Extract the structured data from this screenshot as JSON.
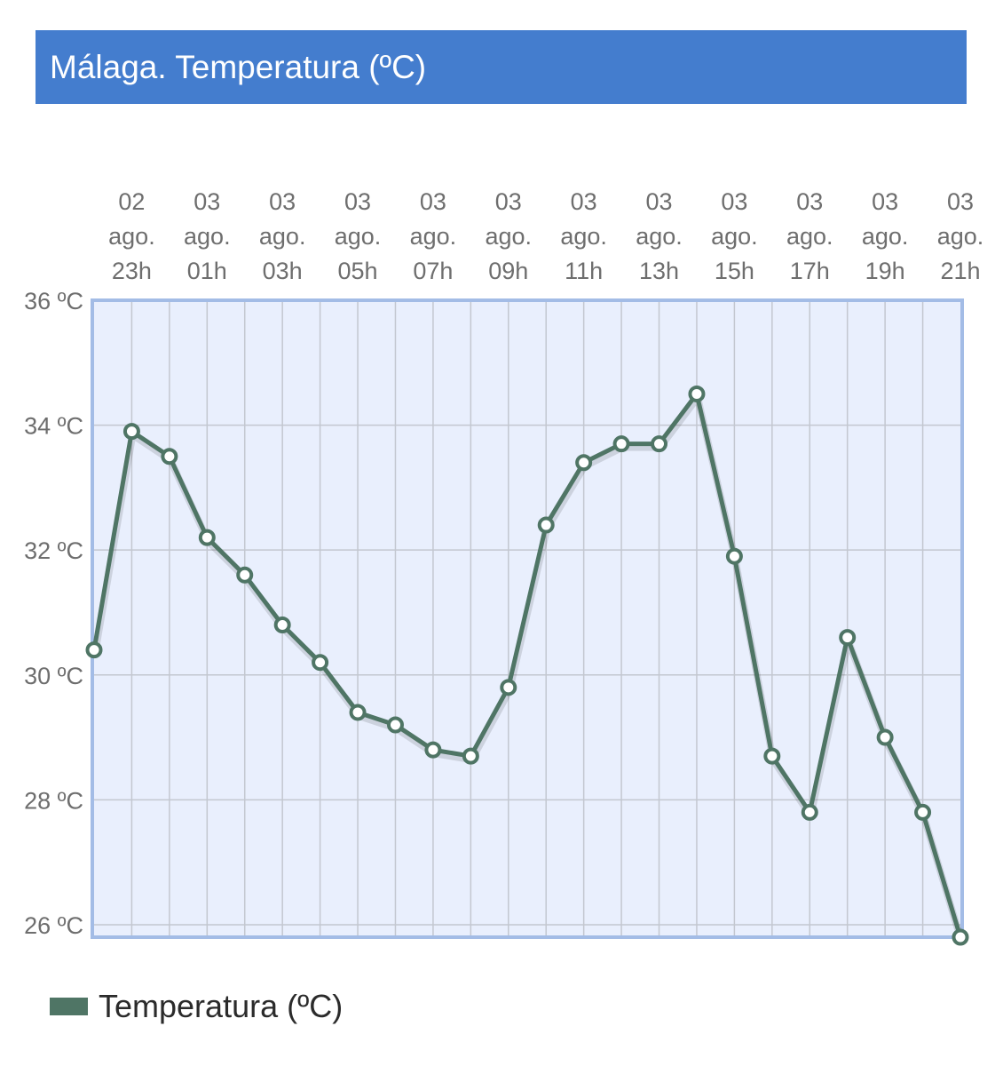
{
  "chart_data": {
    "type": "line",
    "title": "Málaga. Temperatura (ºC)",
    "x_tick_labels": [
      [
        "02",
        "ago.",
        "23h"
      ],
      [
        "03",
        "ago.",
        "01h"
      ],
      [
        "03",
        "ago.",
        "03h"
      ],
      [
        "03",
        "ago.",
        "05h"
      ],
      [
        "03",
        "ago.",
        "07h"
      ],
      [
        "03",
        "ago.",
        "09h"
      ],
      [
        "03",
        "ago.",
        "11h"
      ],
      [
        "03",
        "ago.",
        "13h"
      ],
      [
        "03",
        "ago.",
        "15h"
      ],
      [
        "03",
        "ago.",
        "17h"
      ],
      [
        "03",
        "ago.",
        "19h"
      ],
      [
        "03",
        "ago.",
        "21h"
      ]
    ],
    "y_tick_labels": [
      "36 ºC",
      "34 ºC",
      "32 ºC",
      "30 ºC",
      "28 ºC",
      "26 ºC"
    ],
    "y_ticks": [
      36,
      34,
      32,
      30,
      28,
      26
    ],
    "ylim": [
      25.8,
      36
    ],
    "grid": true,
    "legend_position": "bottom-left",
    "series": [
      {
        "name": "Temperatura (ºC)",
        "color": "#4f7565",
        "values": [
          30.4,
          33.9,
          33.5,
          32.2,
          31.6,
          30.8,
          30.2,
          29.4,
          29.2,
          28.8,
          28.7,
          29.8,
          32.4,
          33.4,
          33.7,
          33.7,
          34.5,
          31.9,
          28.7,
          27.8,
          30.6,
          29.0,
          27.8,
          25.8
        ]
      }
    ]
  },
  "colors": {
    "title_bg": "#447dce",
    "plot_bg": "#e9effd",
    "plot_border": "#a3bce6",
    "grid": "#c3c7d0",
    "line": "#4f7565",
    "tick_text": "#6e6e6e"
  }
}
